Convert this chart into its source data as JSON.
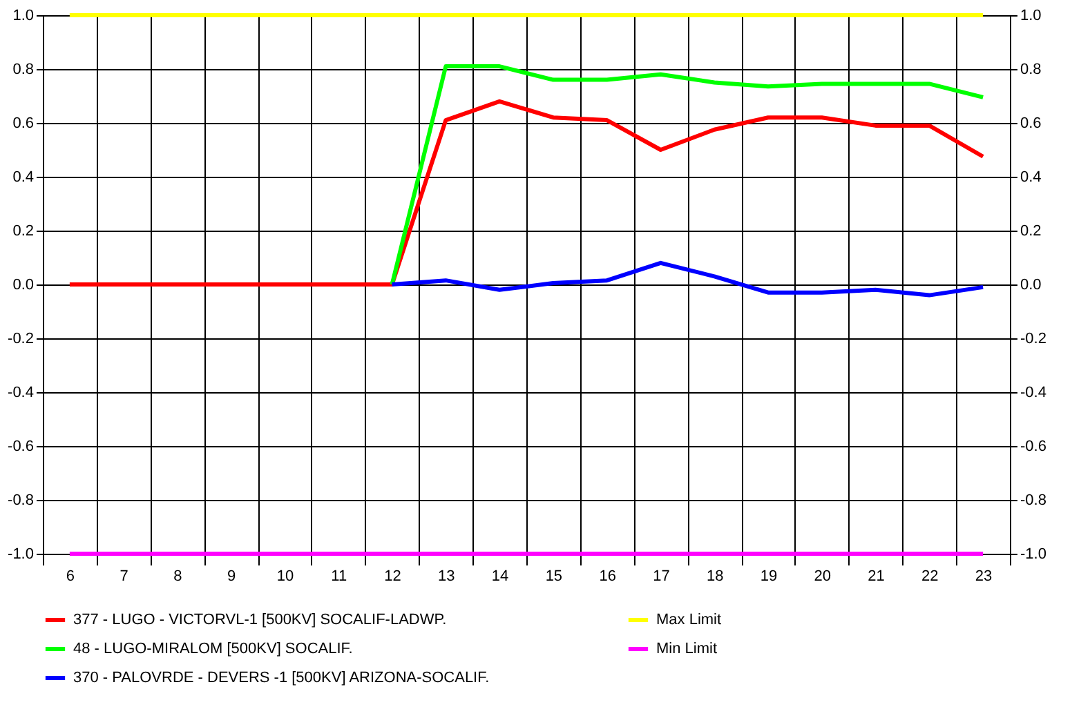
{
  "chart_data": {
    "type": "line",
    "categories": [
      "6",
      "7",
      "8",
      "9",
      "10",
      "11",
      "12",
      "13",
      "14",
      "15",
      "16",
      "17",
      "18",
      "19",
      "20",
      "21",
      "22",
      "23"
    ],
    "series": [
      {
        "name": "377 - LUGO     - VICTORVL-1 [500KV] SOCALIF-LADWP.",
        "color": "#ff0000",
        "values": [
          0,
          0,
          0,
          0,
          0,
          0,
          0,
          0.61,
          0.68,
          0.62,
          0.61,
          0.5,
          0.575,
          0.62,
          0.62,
          0.59,
          0.59,
          0.475
        ]
      },
      {
        "name": "48 - LUGO-MIRALOM [500KV] SOCALIF.",
        "color": "#00ff00",
        "values": [
          null,
          null,
          null,
          null,
          null,
          null,
          0,
          0.81,
          0.81,
          0.76,
          0.76,
          0.78,
          0.75,
          0.735,
          0.745,
          0.745,
          0.745,
          0.695
        ]
      },
      {
        "name": "370 - PALOVRDE - DEVERS  -1 [500KV] ARIZONA-SOCALIF.",
        "color": "#0000ff",
        "values": [
          null,
          null,
          null,
          null,
          null,
          null,
          0,
          0.015,
          -0.02,
          0.005,
          0.015,
          0.08,
          0.03,
          -0.03,
          -0.03,
          -0.02,
          -0.04,
          -0.01
        ]
      },
      {
        "name": "Max Limit",
        "color": "#ffff00",
        "axis": "y2",
        "values": [
          1,
          1,
          1,
          1,
          1,
          1,
          1,
          1,
          1,
          1,
          1,
          1,
          1,
          1,
          1,
          1,
          1,
          1
        ]
      },
      {
        "name": "Min Limit",
        "color": "#ff00ff",
        "axis": "y2",
        "values": [
          -1,
          -1,
          -1,
          -1,
          -1,
          -1,
          -1,
          -1,
          -1,
          -1,
          -1,
          -1,
          -1,
          -1,
          -1,
          -1,
          -1,
          -1
        ]
      }
    ],
    "ylim": [
      -1.0,
      1.0
    ],
    "yticks": [
      {
        "value": -1.0,
        "label": "-1.0"
      },
      {
        "value": -0.8,
        "label": "-0.8"
      },
      {
        "value": -0.6,
        "label": "-0.6"
      },
      {
        "value": -0.4,
        "label": "-0.4"
      },
      {
        "value": -0.2,
        "label": "-0.2"
      },
      {
        "value": 0,
        "label": "0.0"
      },
      {
        "value": 0.2,
        "label": "0.2"
      },
      {
        "value": 0.4,
        "label": "0.4"
      },
      {
        "value": 0.6,
        "label": "0.6"
      },
      {
        "value": 0.8,
        "label": "0.8"
      },
      {
        "value": 1.0,
        "label": "1.0"
      }
    ],
    "y2lim": [
      -1.0,
      1.0
    ],
    "y2ticks": [
      {
        "value": -1.0,
        "label": "-1.0"
      },
      {
        "value": -0.8,
        "label": "-0.8"
      },
      {
        "value": -0.6,
        "label": "-0.6"
      },
      {
        "value": -0.4,
        "label": "-0.4"
      },
      {
        "value": -0.2,
        "label": "-0.2"
      },
      {
        "value": 0,
        "label": "0.0"
      },
      {
        "value": 0.2,
        "label": "0.2"
      },
      {
        "value": 0.4,
        "label": "0.4"
      },
      {
        "value": 0.6,
        "label": "0.6"
      },
      {
        "value": 0.8,
        "label": "0.8"
      },
      {
        "value": 1.0,
        "label": "1.0"
      }
    ],
    "grid": true,
    "legend": "bottom",
    "marker": "none",
    "line_style": "solid"
  }
}
